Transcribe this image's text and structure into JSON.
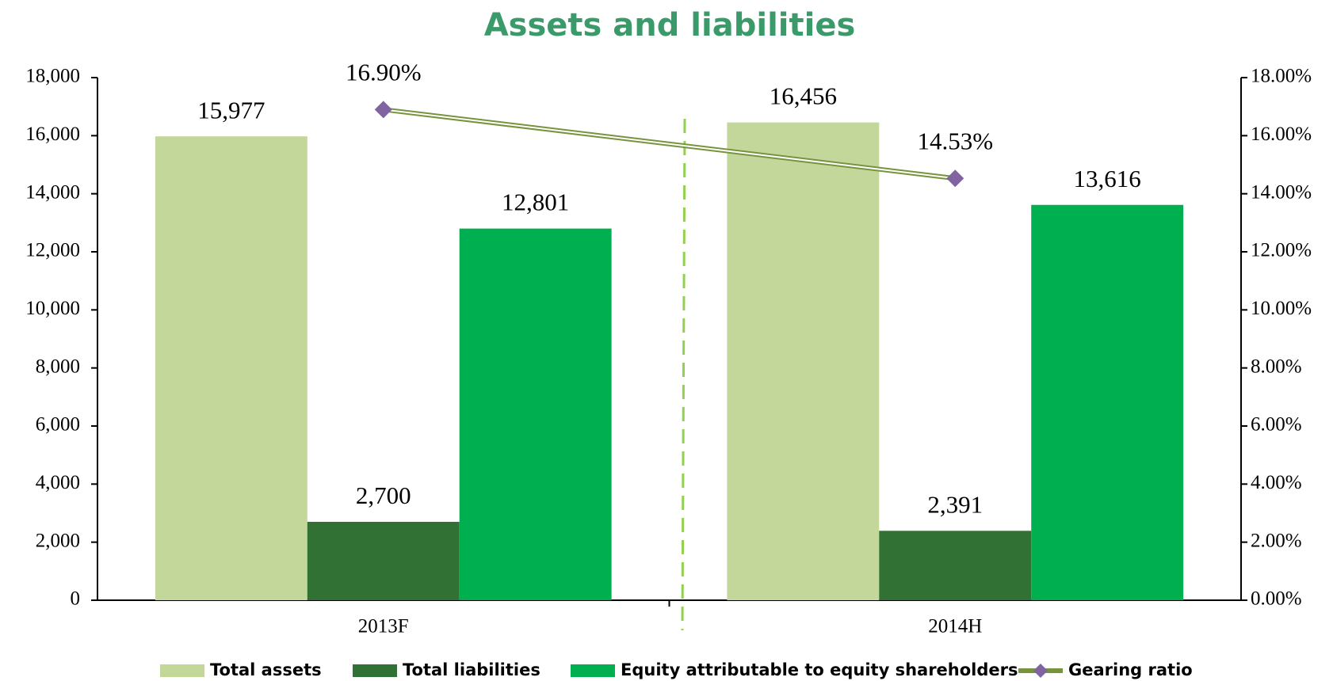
{
  "chart_data": {
    "type": "bar",
    "title": "Assets and liabilities",
    "categories": [
      "2013F",
      "2014H"
    ],
    "series": [
      {
        "name": "Total assets",
        "color": "#c4d79b",
        "values": [
          15977,
          16456
        ],
        "value_labels": [
          "15,977",
          "16,456"
        ]
      },
      {
        "name": "Total liabilities",
        "color": "#317234",
        "values": [
          2700,
          2391
        ],
        "value_labels": [
          "2,700",
          "2,391"
        ]
      },
      {
        "name": "Equity attributable to equity shareholders",
        "color": "#00b050",
        "values": [
          12801,
          13616
        ],
        "value_labels": [
          "12,801",
          "13,616"
        ]
      },
      {
        "name": "Gearing ratio",
        "type": "line",
        "axis": "y2",
        "color": "#77933c",
        "marker_color": "#8064a2",
        "values": [
          16.9,
          14.53
        ],
        "value_labels": [
          "16.90%",
          "14.53%"
        ]
      }
    ],
    "ylim": [
      0,
      18000
    ],
    "yticks": [
      0,
      {
        "value": 2000,
        "label": "2,000"
      },
      {
        "value": 4000,
        "label": "4,000"
      },
      {
        "value": 6000,
        "label": "6,000"
      },
      {
        "value": 8000,
        "label": "8,000"
      },
      {
        "value": 10000,
        "label": "10,000"
      },
      {
        "value": 12000,
        "label": "12,000"
      },
      {
        "value": 14000,
        "label": "14,000"
      },
      {
        "value": 16000,
        "label": "16,000"
      },
      {
        "value": 18000,
        "label": "18,000"
      }
    ],
    "y2lim": [
      0,
      18
    ],
    "y2ticks": [
      {
        "value": 0,
        "label": "0.00%"
      },
      {
        "value": 2,
        "label": "2.00%"
      },
      {
        "value": 4,
        "label": "4.00%"
      },
      {
        "value": 6,
        "label": "6.00%"
      },
      {
        "value": 8,
        "label": "8.00%"
      },
      {
        "value": 10,
        "label": "10.00%"
      },
      {
        "value": 12,
        "label": "12.00%"
      },
      {
        "value": 14,
        "label": "14.00%"
      },
      {
        "value": 16,
        "label": "16.00%"
      },
      {
        "value": 18,
        "label": "18.00%"
      }
    ],
    "grid": false,
    "legend": "bottom"
  }
}
